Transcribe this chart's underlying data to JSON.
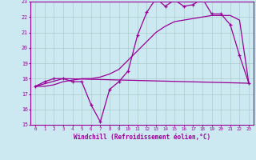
{
  "xlabel": "Windchill (Refroidissement éolien,°C)",
  "line1_x": [
    0,
    1,
    2,
    3,
    4,
    5,
    6,
    7,
    8,
    9,
    10,
    11,
    12,
    13,
    14,
    15,
    16,
    17,
    18,
    19,
    20,
    21,
    22,
    23
  ],
  "line1_y": [
    17.5,
    17.8,
    18.0,
    18.0,
    17.8,
    17.8,
    16.3,
    15.2,
    17.3,
    17.8,
    18.5,
    20.8,
    22.3,
    23.2,
    22.7,
    23.1,
    22.7,
    22.8,
    23.2,
    22.2,
    22.2,
    21.5,
    19.5,
    17.7
  ],
  "line2_x": [
    0,
    3,
    23
  ],
  "line2_y": [
    17.5,
    18.0,
    17.7
  ],
  "line3_x": [
    0,
    1,
    2,
    3,
    4,
    5,
    6,
    7,
    8,
    9,
    10,
    11,
    12,
    13,
    14,
    15,
    16,
    17,
    18,
    19,
    20,
    21,
    22,
    23
  ],
  "line3_y": [
    17.5,
    17.5,
    17.6,
    17.8,
    17.9,
    18.0,
    18.0,
    18.1,
    18.3,
    18.6,
    19.2,
    19.8,
    20.4,
    21.0,
    21.4,
    21.7,
    21.8,
    21.9,
    22.0,
    22.1,
    22.1,
    22.1,
    21.8,
    17.7
  ],
  "line_color": "#990099",
  "bg_color": "#cce8f0",
  "grid_color": "#aacccc",
  "xlim": [
    -0.5,
    23.5
  ],
  "ylim": [
    15,
    23
  ],
  "yticks": [
    15,
    16,
    17,
    18,
    19,
    20,
    21,
    22,
    23
  ],
  "xticks": [
    0,
    1,
    2,
    3,
    4,
    5,
    6,
    7,
    8,
    9,
    10,
    11,
    12,
    13,
    14,
    15,
    16,
    17,
    18,
    19,
    20,
    21,
    22,
    23
  ],
  "tick_color": "#990099",
  "marker": "+"
}
